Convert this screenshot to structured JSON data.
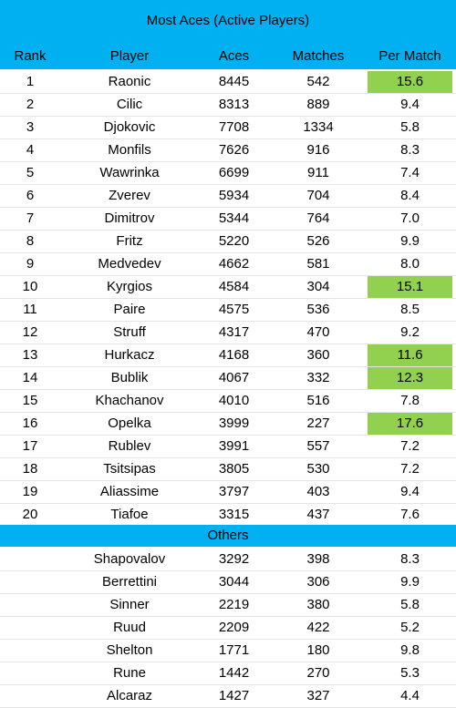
{
  "title": "Most Aces (Active Players)",
  "headers": {
    "rank": "Rank",
    "player": "Player",
    "aces": "Aces",
    "matches": "Matches",
    "per_match": "Per Match"
  },
  "highlight_color": "#92d050",
  "header_color": "#00b0f0",
  "rows": [
    {
      "rank": "1",
      "player": "Raonic",
      "aces": "8445",
      "matches": "542",
      "per_match": "15.6",
      "highlight": true
    },
    {
      "rank": "2",
      "player": "Cilic",
      "aces": "8313",
      "matches": "889",
      "per_match": "9.4",
      "highlight": false
    },
    {
      "rank": "3",
      "player": "Djokovic",
      "aces": "7708",
      "matches": "1334",
      "per_match": "5.8",
      "highlight": false
    },
    {
      "rank": "4",
      "player": "Monfils",
      "aces": "7626",
      "matches": "916",
      "per_match": "8.3",
      "highlight": false
    },
    {
      "rank": "5",
      "player": "Wawrinka",
      "aces": "6699",
      "matches": "911",
      "per_match": "7.4",
      "highlight": false
    },
    {
      "rank": "6",
      "player": "Zverev",
      "aces": "5934",
      "matches": "704",
      "per_match": "8.4",
      "highlight": false
    },
    {
      "rank": "7",
      "player": "Dimitrov",
      "aces": "5344",
      "matches": "764",
      "per_match": "7.0",
      "highlight": false
    },
    {
      "rank": "8",
      "player": "Fritz",
      "aces": "5220",
      "matches": "526",
      "per_match": "9.9",
      "highlight": false
    },
    {
      "rank": "9",
      "player": "Medvedev",
      "aces": "4662",
      "matches": "581",
      "per_match": "8.0",
      "highlight": false
    },
    {
      "rank": "10",
      "player": "Kyrgios",
      "aces": "4584",
      "matches": "304",
      "per_match": "15.1",
      "highlight": true
    },
    {
      "rank": "11",
      "player": "Paire",
      "aces": "4575",
      "matches": "536",
      "per_match": "8.5",
      "highlight": false
    },
    {
      "rank": "12",
      "player": "Struff",
      "aces": "4317",
      "matches": "470",
      "per_match": "9.2",
      "highlight": false
    },
    {
      "rank": "13",
      "player": "Hurkacz",
      "aces": "4168",
      "matches": "360",
      "per_match": "11.6",
      "highlight": true
    },
    {
      "rank": "14",
      "player": "Bublik",
      "aces": "4067",
      "matches": "332",
      "per_match": "12.3",
      "highlight": true
    },
    {
      "rank": "15",
      "player": "Khachanov",
      "aces": "4010",
      "matches": "516",
      "per_match": "7.8",
      "highlight": false
    },
    {
      "rank": "16",
      "player": "Opelka",
      "aces": "3999",
      "matches": "227",
      "per_match": "17.6",
      "highlight": true
    },
    {
      "rank": "17",
      "player": "Rublev",
      "aces": "3991",
      "matches": "557",
      "per_match": "7.2",
      "highlight": false
    },
    {
      "rank": "18",
      "player": "Tsitsipas",
      "aces": "3805",
      "matches": "530",
      "per_match": "7.2",
      "highlight": false
    },
    {
      "rank": "19",
      "player": "Aliassime",
      "aces": "3797",
      "matches": "403",
      "per_match": "9.4",
      "highlight": false
    },
    {
      "rank": "20",
      "player": "Tiafoe",
      "aces": "3315",
      "matches": "437",
      "per_match": "7.6",
      "highlight": false
    }
  ],
  "others_label": "Others",
  "others": [
    {
      "player": "Shapovalov",
      "aces": "3292",
      "matches": "398",
      "per_match": "8.3"
    },
    {
      "player": "Berrettini",
      "aces": "3044",
      "matches": "306",
      "per_match": "9.9"
    },
    {
      "player": "Sinner",
      "aces": "2219",
      "matches": "380",
      "per_match": "5.8"
    },
    {
      "player": "Ruud",
      "aces": "2209",
      "matches": "422",
      "per_match": "5.2"
    },
    {
      "player": "Shelton",
      "aces": "1771",
      "matches": "180",
      "per_match": "9.8"
    },
    {
      "player": "Rune",
      "aces": "1442",
      "matches": "270",
      "per_match": "5.3"
    },
    {
      "player": "Alcaraz",
      "aces": "1427",
      "matches": "327",
      "per_match": "4.4"
    }
  ]
}
